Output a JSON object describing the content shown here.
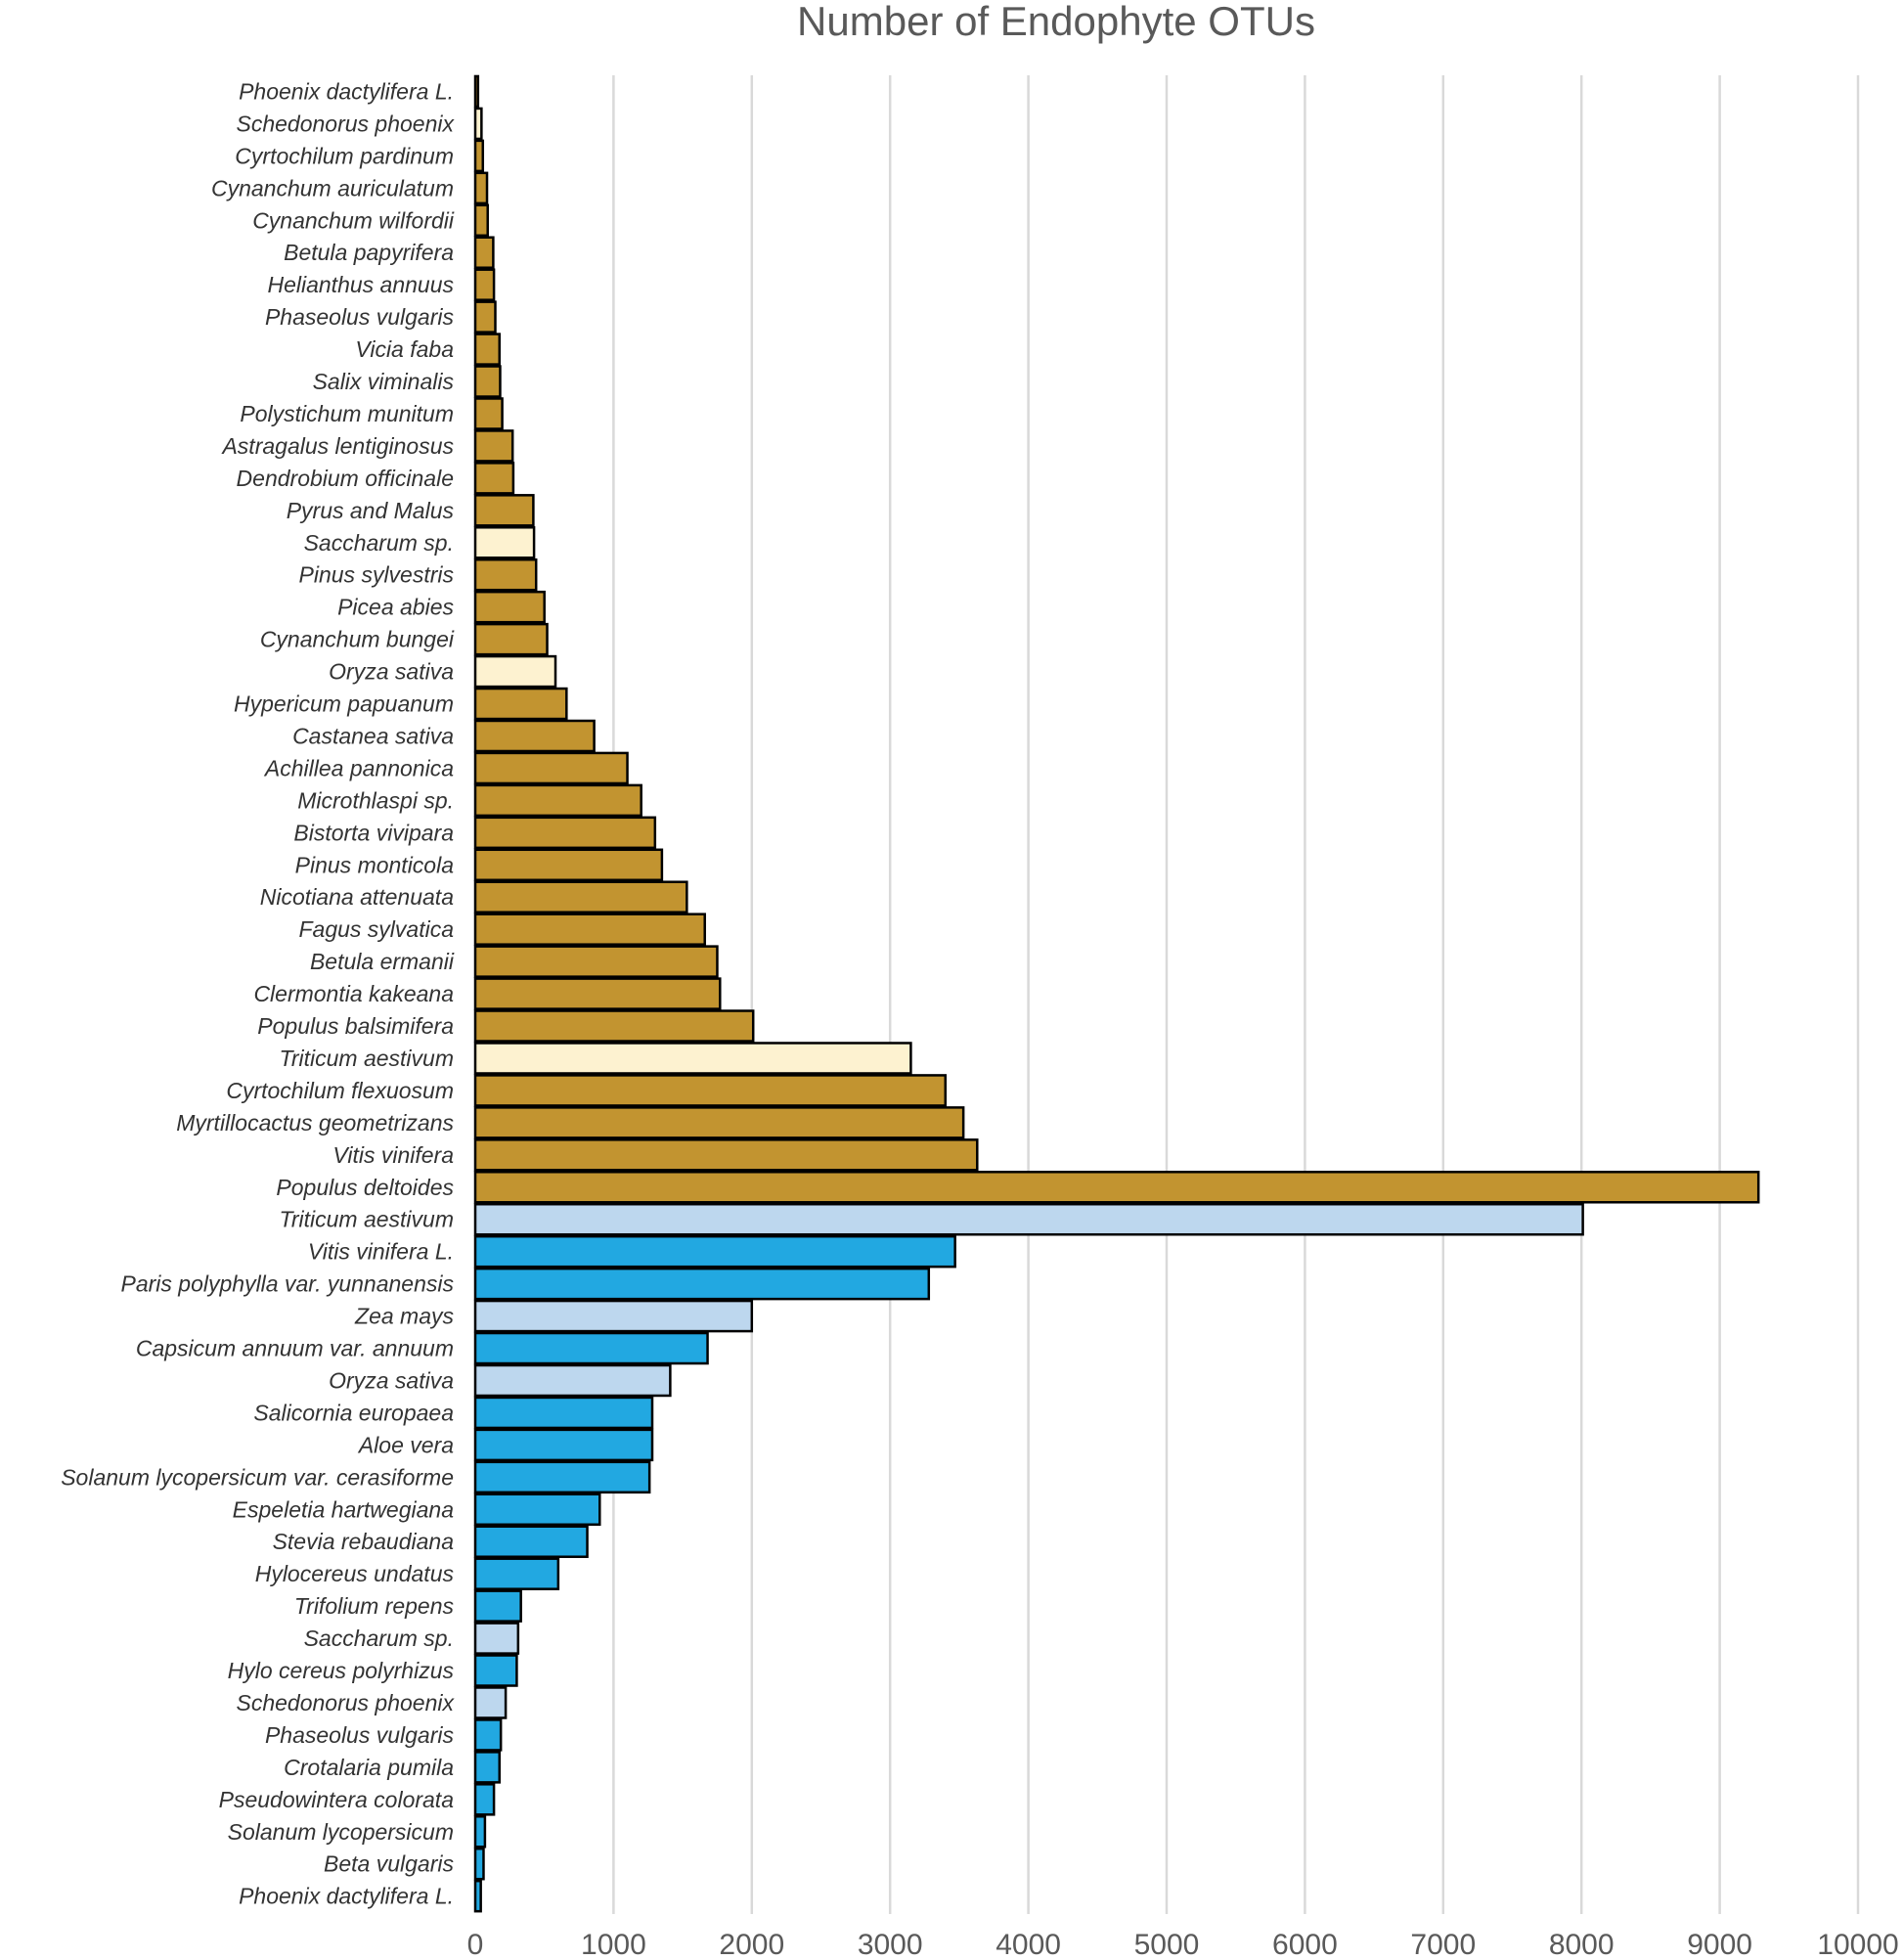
{
  "chart_data": {
    "type": "bar",
    "orientation": "horizontal",
    "title": "Number of Endophyte OTUs",
    "xlabel": "",
    "ylabel": "",
    "xlim": [
      0,
      10000
    ],
    "xticks": [
      0,
      1000,
      2000,
      3000,
      4000,
      5000,
      6000,
      7000,
      8000,
      9000,
      10000
    ],
    "grid": "vertical",
    "legend": "none",
    "colors": {
      "gold": "#c29430",
      "cream": "#fdf2d0",
      "blue": "#22a8e1",
      "lightblue": "#bdd7ee"
    },
    "categories": [
      "Phoenix dactylifera L.",
      "Schedonorus phoenix",
      "Cyrtochilum pardinum",
      "Cynanchum auriculatum",
      "Cynanchum wilfordii",
      "Betula papyrifera",
      "Helianthus annuus",
      "Phaseolus vulgaris",
      "Vicia faba",
      "Salix viminalis",
      "Polystichum munitum",
      "Astragalus lentiginosus",
      "Dendrobium officinale",
      "Pyrus and Malus",
      "Saccharum sp.",
      "Pinus sylvestris",
      "Picea abies",
      "Cynanchum bungei",
      "Oryza sativa",
      "Hypericum papuanum",
      "Castanea sativa",
      "Achillea pannonica",
      "Microthlaspi sp.",
      "Bistorta vivipara",
      "Pinus monticola",
      "Nicotiana attenuata",
      "Fagus sylvatica",
      "Betula ermanii",
      "Clermontia kakeana",
      "Populus balsimifera",
      "Triticum aestivum",
      "Cyrtochilum flexuosum",
      "Myrtillocactus geometrizans",
      "Vitis vinifera",
      "Populus deltoides",
      "Triticum aestivum",
      "Vitis vinifera L.",
      "Paris polyphylla var. yunnanensis",
      "Zea mays",
      "Capsicum annuum var. annuum",
      "Oryza sativa",
      "Salicornia europaea",
      "Aloe vera",
      "Solanum lycopersicum var. cerasiforme",
      "Espeletia hartwegiana",
      "Stevia rebaudiana",
      "Hylocereus undatus",
      "Trifolium repens",
      "Saccharum sp.",
      "Hylo cereus polyrhizus",
      "Schedonorus phoenix",
      "Phaseolus vulgaris",
      "Crotalaria pumila",
      "Pseudowintera colorata",
      "Solanum lycopersicum",
      "Beta vulgaris",
      "Phoenix dactylifera L."
    ],
    "values": [
      20,
      45,
      55,
      85,
      90,
      130,
      135,
      145,
      175,
      180,
      195,
      270,
      275,
      420,
      425,
      440,
      500,
      520,
      580,
      660,
      860,
      1100,
      1200,
      1300,
      1350,
      1530,
      1660,
      1750,
      1770,
      2010,
      3150,
      3400,
      3530,
      3630,
      9280,
      8010,
      3470,
      3280,
      2000,
      1680,
      1410,
      1280,
      1280,
      1260,
      900,
      810,
      600,
      330,
      310,
      300,
      220,
      185,
      175,
      135,
      70,
      60,
      40
    ],
    "bar_colors": [
      "gold",
      "cream",
      "gold",
      "gold",
      "gold",
      "gold",
      "gold",
      "gold",
      "gold",
      "gold",
      "gold",
      "gold",
      "gold",
      "gold",
      "cream",
      "gold",
      "gold",
      "gold",
      "cream",
      "gold",
      "gold",
      "gold",
      "gold",
      "gold",
      "gold",
      "gold",
      "gold",
      "gold",
      "gold",
      "gold",
      "cream",
      "gold",
      "gold",
      "gold",
      "gold",
      "lightblue",
      "blue",
      "blue",
      "lightblue",
      "blue",
      "lightblue",
      "blue",
      "blue",
      "blue",
      "blue",
      "blue",
      "blue",
      "blue",
      "lightblue",
      "blue",
      "lightblue",
      "blue",
      "blue",
      "blue",
      "blue",
      "blue",
      "blue"
    ]
  }
}
